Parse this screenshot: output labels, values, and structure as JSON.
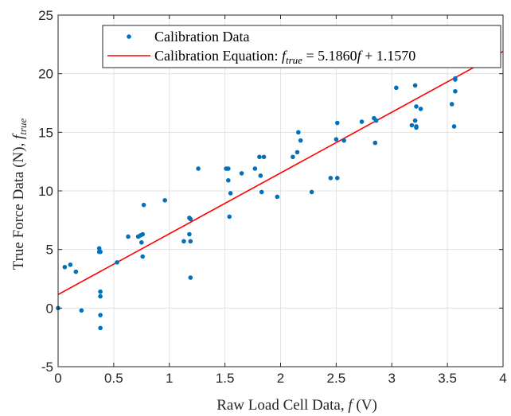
{
  "chart_data": {
    "type": "scatter",
    "xlabel": "Raw Load Cell Data, f (V)",
    "ylabel": "True Force Data (N), f_true",
    "xlim": [
      0,
      4
    ],
    "ylim": [
      -5,
      25
    ],
    "xticks": [
      "0",
      "0.5",
      "1",
      "1.5",
      "2",
      "2.5",
      "3",
      "3.5",
      "4"
    ],
    "yticks": [
      "-5",
      "0",
      "5",
      "10",
      "15",
      "20",
      "25"
    ],
    "grid": true,
    "legend_position": "top-right",
    "colors": {
      "points": "#0072bd",
      "fit": "#ff0000"
    },
    "series": [
      {
        "name": "Calibration Data",
        "type": "scatter",
        "x": [
          0.0,
          0.06,
          0.11,
          0.16,
          0.21,
          0.37,
          0.37,
          0.38,
          0.38,
          0.38,
          0.38,
          0.38,
          0.53,
          0.63,
          0.72,
          0.74,
          0.75,
          0.76,
          0.76,
          0.77,
          0.96,
          1.13,
          1.18,
          1.18,
          1.19,
          1.19,
          1.19,
          1.26,
          1.51,
          1.52,
          1.53,
          1.53,
          1.54,
          1.55,
          1.65,
          1.77,
          1.81,
          1.82,
          1.83,
          1.85,
          1.97,
          2.11,
          2.15,
          2.16,
          2.18,
          2.28,
          2.45,
          2.5,
          2.51,
          2.51,
          2.57,
          2.73,
          2.84,
          2.85,
          2.86,
          3.04,
          3.18,
          3.21,
          3.21,
          3.22,
          3.22,
          3.22,
          3.26,
          3.54,
          3.56,
          3.57,
          3.57,
          3.57,
          3.93
        ],
        "y": [
          0.0,
          3.5,
          3.7,
          3.1,
          -0.2,
          4.8,
          5.1,
          1.4,
          1.0,
          -0.6,
          -1.7,
          4.8,
          3.9,
          6.1,
          6.1,
          6.2,
          5.6,
          4.4,
          6.3,
          8.8,
          9.2,
          5.7,
          7.7,
          6.3,
          5.7,
          2.6,
          7.6,
          11.9,
          11.9,
          11.9,
          10.9,
          11.9,
          7.8,
          9.8,
          11.5,
          11.9,
          12.9,
          11.3,
          9.9,
          12.9,
          9.5,
          12.9,
          13.3,
          15.0,
          14.3,
          9.9,
          11.1,
          14.4,
          15.8,
          11.1,
          14.3,
          15.9,
          16.2,
          14.1,
          16.0,
          18.8,
          15.6,
          19.0,
          16.0,
          15.4,
          17.2,
          15.5,
          17.0,
          17.4,
          15.5,
          18.5,
          19.6,
          19.5,
          23.4
        ]
      },
      {
        "name": "Calibration Equation: f_true = 5.1860f + 1.1570",
        "type": "line",
        "slope": 5.186,
        "intercept": 1.157,
        "x": [
          0,
          4
        ]
      }
    ]
  }
}
